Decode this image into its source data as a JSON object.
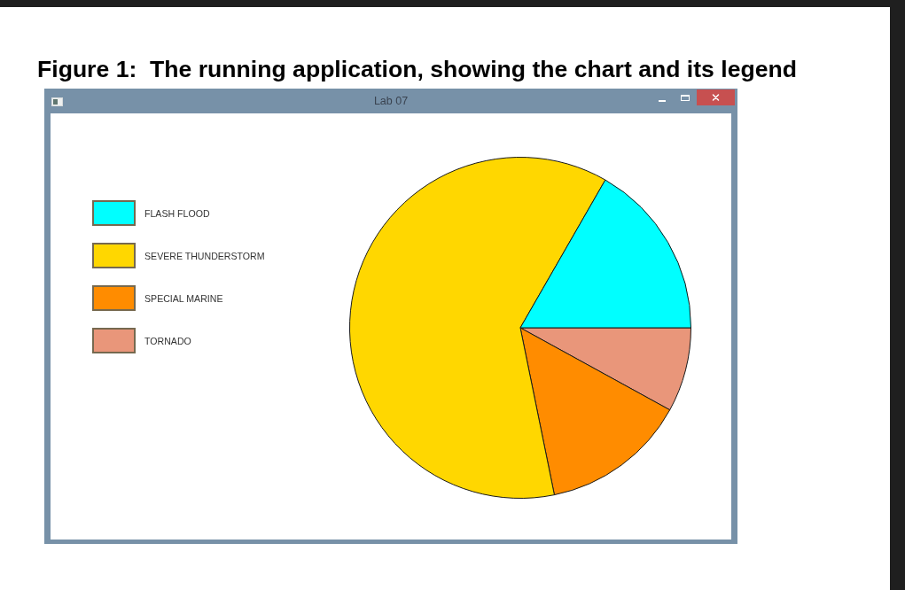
{
  "chart_data": {
    "type": "pie",
    "title": "Lab 07",
    "annotations": [
      "Figure 1:  The running application, showing the chart and its legend"
    ],
    "categories": [
      "FLASH FLOOD",
      "SEVERE THUNDERSTORM",
      "SPECIAL MARINE",
      "TORNADO"
    ],
    "values": [
      16.7,
      61.5,
      13.8,
      8
    ],
    "colors": [
      "#00ffff",
      "#ffd700",
      "#ff8c00",
      "#e9967a"
    ],
    "legend": "left"
  }
}
